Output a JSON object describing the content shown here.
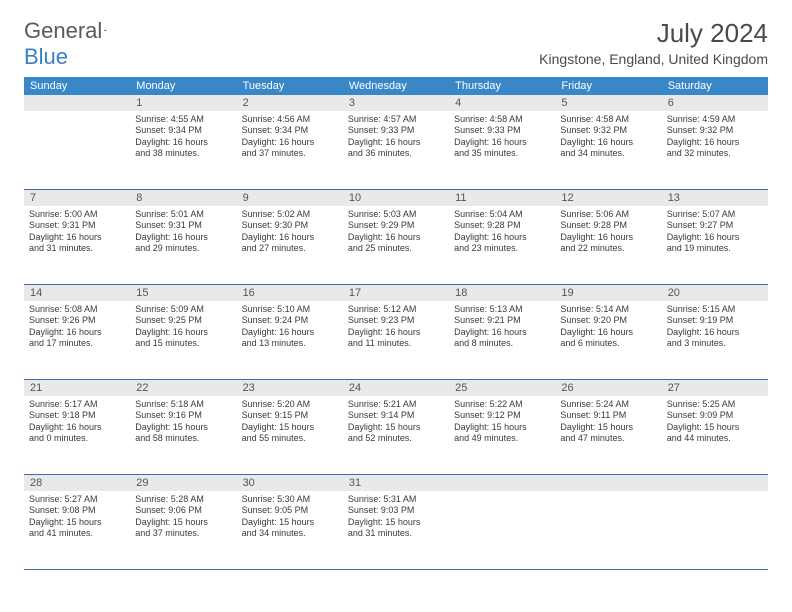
{
  "logo": {
    "text1": "General",
    "text2": "Blue"
  },
  "title": "July 2024",
  "location": "Kingstone, England, United Kingdom",
  "header_bg": "#3a87c7",
  "daynames": [
    "Sunday",
    "Monday",
    "Tuesday",
    "Wednesday",
    "Thursday",
    "Friday",
    "Saturday"
  ],
  "weeks": [
    {
      "nums": [
        "",
        "1",
        "2",
        "3",
        "4",
        "5",
        "6"
      ],
      "cells": [
        null,
        {
          "sunrise": "4:55 AM",
          "sunset": "9:34 PM",
          "day_a": "Daylight: 16 hours",
          "day_b": "and 38 minutes."
        },
        {
          "sunrise": "4:56 AM",
          "sunset": "9:34 PM",
          "day_a": "Daylight: 16 hours",
          "day_b": "and 37 minutes."
        },
        {
          "sunrise": "4:57 AM",
          "sunset": "9:33 PM",
          "day_a": "Daylight: 16 hours",
          "day_b": "and 36 minutes."
        },
        {
          "sunrise": "4:58 AM",
          "sunset": "9:33 PM",
          "day_a": "Daylight: 16 hours",
          "day_b": "and 35 minutes."
        },
        {
          "sunrise": "4:58 AM",
          "sunset": "9:32 PM",
          "day_a": "Daylight: 16 hours",
          "day_b": "and 34 minutes."
        },
        {
          "sunrise": "4:59 AM",
          "sunset": "9:32 PM",
          "day_a": "Daylight: 16 hours",
          "day_b": "and 32 minutes."
        }
      ]
    },
    {
      "nums": [
        "7",
        "8",
        "9",
        "10",
        "11",
        "12",
        "13"
      ],
      "cells": [
        {
          "sunrise": "5:00 AM",
          "sunset": "9:31 PM",
          "day_a": "Daylight: 16 hours",
          "day_b": "and 31 minutes."
        },
        {
          "sunrise": "5:01 AM",
          "sunset": "9:31 PM",
          "day_a": "Daylight: 16 hours",
          "day_b": "and 29 minutes."
        },
        {
          "sunrise": "5:02 AM",
          "sunset": "9:30 PM",
          "day_a": "Daylight: 16 hours",
          "day_b": "and 27 minutes."
        },
        {
          "sunrise": "5:03 AM",
          "sunset": "9:29 PM",
          "day_a": "Daylight: 16 hours",
          "day_b": "and 25 minutes."
        },
        {
          "sunrise": "5:04 AM",
          "sunset": "9:28 PM",
          "day_a": "Daylight: 16 hours",
          "day_b": "and 23 minutes."
        },
        {
          "sunrise": "5:06 AM",
          "sunset": "9:28 PM",
          "day_a": "Daylight: 16 hours",
          "day_b": "and 22 minutes."
        },
        {
          "sunrise": "5:07 AM",
          "sunset": "9:27 PM",
          "day_a": "Daylight: 16 hours",
          "day_b": "and 19 minutes."
        }
      ]
    },
    {
      "nums": [
        "14",
        "15",
        "16",
        "17",
        "18",
        "19",
        "20"
      ],
      "cells": [
        {
          "sunrise": "5:08 AM",
          "sunset": "9:26 PM",
          "day_a": "Daylight: 16 hours",
          "day_b": "and 17 minutes."
        },
        {
          "sunrise": "5:09 AM",
          "sunset": "9:25 PM",
          "day_a": "Daylight: 16 hours",
          "day_b": "and 15 minutes."
        },
        {
          "sunrise": "5:10 AM",
          "sunset": "9:24 PM",
          "day_a": "Daylight: 16 hours",
          "day_b": "and 13 minutes."
        },
        {
          "sunrise": "5:12 AM",
          "sunset": "9:23 PM",
          "day_a": "Daylight: 16 hours",
          "day_b": "and 11 minutes."
        },
        {
          "sunrise": "5:13 AM",
          "sunset": "9:21 PM",
          "day_a": "Daylight: 16 hours",
          "day_b": "and 8 minutes."
        },
        {
          "sunrise": "5:14 AM",
          "sunset": "9:20 PM",
          "day_a": "Daylight: 16 hours",
          "day_b": "and 6 minutes."
        },
        {
          "sunrise": "5:15 AM",
          "sunset": "9:19 PM",
          "day_a": "Daylight: 16 hours",
          "day_b": "and 3 minutes."
        }
      ]
    },
    {
      "nums": [
        "21",
        "22",
        "23",
        "24",
        "25",
        "26",
        "27"
      ],
      "cells": [
        {
          "sunrise": "5:17 AM",
          "sunset": "9:18 PM",
          "day_a": "Daylight: 16 hours",
          "day_b": "and 0 minutes."
        },
        {
          "sunrise": "5:18 AM",
          "sunset": "9:16 PM",
          "day_a": "Daylight: 15 hours",
          "day_b": "and 58 minutes."
        },
        {
          "sunrise": "5:20 AM",
          "sunset": "9:15 PM",
          "day_a": "Daylight: 15 hours",
          "day_b": "and 55 minutes."
        },
        {
          "sunrise": "5:21 AM",
          "sunset": "9:14 PM",
          "day_a": "Daylight: 15 hours",
          "day_b": "and 52 minutes."
        },
        {
          "sunrise": "5:22 AM",
          "sunset": "9:12 PM",
          "day_a": "Daylight: 15 hours",
          "day_b": "and 49 minutes."
        },
        {
          "sunrise": "5:24 AM",
          "sunset": "9:11 PM",
          "day_a": "Daylight: 15 hours",
          "day_b": "and 47 minutes."
        },
        {
          "sunrise": "5:25 AM",
          "sunset": "9:09 PM",
          "day_a": "Daylight: 15 hours",
          "day_b": "and 44 minutes."
        }
      ]
    },
    {
      "nums": [
        "28",
        "29",
        "30",
        "31",
        "",
        "",
        ""
      ],
      "cells": [
        {
          "sunrise": "5:27 AM",
          "sunset": "9:08 PM",
          "day_a": "Daylight: 15 hours",
          "day_b": "and 41 minutes."
        },
        {
          "sunrise": "5:28 AM",
          "sunset": "9:06 PM",
          "day_a": "Daylight: 15 hours",
          "day_b": "and 37 minutes."
        },
        {
          "sunrise": "5:30 AM",
          "sunset": "9:05 PM",
          "day_a": "Daylight: 15 hours",
          "day_b": "and 34 minutes."
        },
        {
          "sunrise": "5:31 AM",
          "sunset": "9:03 PM",
          "day_a": "Daylight: 15 hours",
          "day_b": "and 31 minutes."
        },
        null,
        null,
        null
      ]
    }
  ]
}
